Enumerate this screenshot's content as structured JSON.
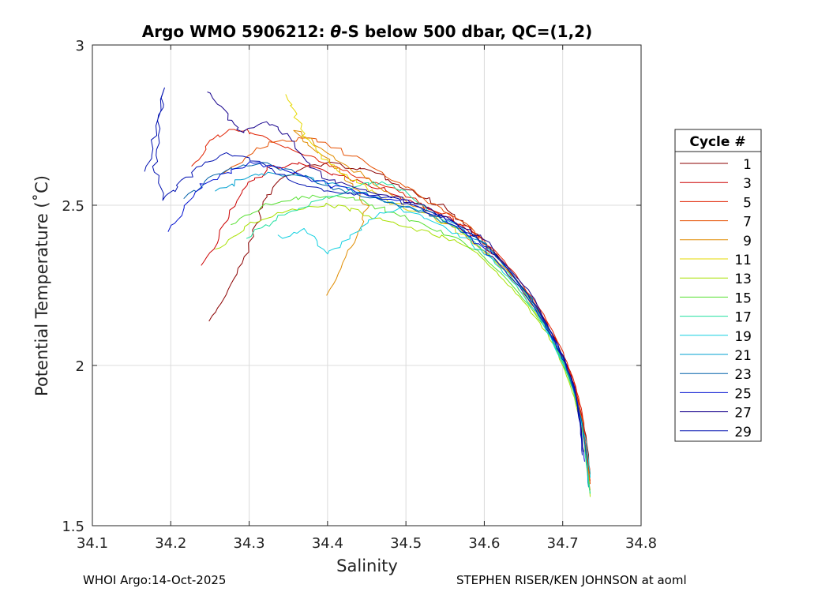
{
  "chart_data": {
    "type": "line",
    "title_prefix": "Argo WMO 5906212: ",
    "title_theta": "θ",
    "title_suffix": "-S below 500 dbar,  QC=(1,2)",
    "xlabel": "Salinity",
    "ylabel": "Potential Temperature (˚C)",
    "xlim": [
      34.1,
      34.8
    ],
    "ylim": [
      1.5,
      3.0
    ],
    "xticks": [
      "34.1",
      "34.2",
      "34.3",
      "34.4",
      "34.5",
      "34.6",
      "34.7",
      "34.8"
    ],
    "yticks": [
      "1.5",
      "2",
      "2.5",
      "3"
    ],
    "grid": true,
    "legend": {
      "title": "Cycle #",
      "placement": "right",
      "entries": [
        "1",
        "3",
        "5",
        "7",
        "9",
        "11",
        "13",
        "15",
        "17",
        "19",
        "21",
        "23",
        "25",
        "27",
        "29"
      ],
      "colors": [
        "#8b0000",
        "#cc0000",
        "#e02000",
        "#e65000",
        "#e08c00",
        "#e6d800",
        "#a8e000",
        "#55e030",
        "#20e0a0",
        "#10d0e0",
        "#00a0d0",
        "#0060a8",
        "#0010d0",
        "#15008c",
        "#0010b0"
      ]
    },
    "series": [
      {
        "name": "1",
        "points": [
          [
            34.25,
            2.14
          ],
          [
            34.27,
            2.22
          ],
          [
            34.29,
            2.32
          ],
          [
            34.31,
            2.44
          ],
          [
            34.32,
            2.52
          ],
          [
            34.34,
            2.58
          ],
          [
            34.37,
            2.62
          ],
          [
            34.4,
            2.63
          ],
          [
            34.43,
            2.62
          ],
          [
            34.46,
            2.6
          ],
          [
            34.49,
            2.57
          ],
          [
            34.52,
            2.53
          ],
          [
            34.55,
            2.49
          ],
          [
            34.58,
            2.43
          ],
          [
            34.61,
            2.36
          ],
          [
            34.64,
            2.27
          ],
          [
            34.67,
            2.17
          ],
          [
            34.69,
            2.08
          ],
          [
            34.71,
            1.98
          ],
          [
            34.72,
            1.88
          ],
          [
            34.73,
            1.78
          ],
          [
            34.735,
            1.66
          ]
        ]
      },
      {
        "name": "3",
        "points": [
          [
            34.24,
            2.31
          ],
          [
            34.26,
            2.4
          ],
          [
            34.28,
            2.5
          ],
          [
            34.3,
            2.57
          ],
          [
            34.33,
            2.62
          ],
          [
            34.36,
            2.63
          ],
          [
            34.39,
            2.61
          ],
          [
            34.43,
            2.58
          ],
          [
            34.47,
            2.55
          ],
          [
            34.51,
            2.51
          ],
          [
            34.55,
            2.47
          ],
          [
            34.59,
            2.4
          ],
          [
            34.62,
            2.33
          ],
          [
            34.65,
            2.24
          ],
          [
            34.68,
            2.13
          ],
          [
            34.7,
            2.03
          ],
          [
            34.715,
            1.94
          ],
          [
            34.725,
            1.84
          ],
          [
            34.73,
            1.74
          ],
          [
            34.735,
            1.64
          ]
        ]
      },
      {
        "name": "5",
        "points": [
          [
            34.23,
            2.62
          ],
          [
            34.25,
            2.7
          ],
          [
            34.28,
            2.74
          ],
          [
            34.31,
            2.72
          ],
          [
            34.35,
            2.68
          ],
          [
            34.39,
            2.64
          ],
          [
            34.43,
            2.6
          ],
          [
            34.47,
            2.56
          ],
          [
            34.51,
            2.52
          ],
          [
            34.55,
            2.47
          ],
          [
            34.59,
            2.41
          ],
          [
            34.62,
            2.34
          ],
          [
            34.65,
            2.25
          ],
          [
            34.68,
            2.14
          ],
          [
            34.7,
            2.04
          ],
          [
            34.715,
            1.95
          ],
          [
            34.725,
            1.85
          ],
          [
            34.73,
            1.76
          ],
          [
            34.735,
            1.66
          ]
        ]
      },
      {
        "name": "7",
        "points": [
          [
            34.27,
            2.6
          ],
          [
            34.3,
            2.66
          ],
          [
            34.33,
            2.7
          ],
          [
            34.37,
            2.71
          ],
          [
            34.41,
            2.68
          ],
          [
            34.45,
            2.63
          ],
          [
            34.49,
            2.57
          ],
          [
            34.53,
            2.51
          ],
          [
            34.57,
            2.45
          ],
          [
            34.6,
            2.38
          ],
          [
            34.63,
            2.3
          ],
          [
            34.66,
            2.21
          ],
          [
            34.68,
            2.12
          ],
          [
            34.7,
            2.02
          ],
          [
            34.715,
            1.93
          ],
          [
            34.725,
            1.83
          ],
          [
            34.73,
            1.73
          ],
          [
            34.735,
            1.63
          ]
        ]
      },
      {
        "name": "9",
        "points": [
          [
            34.4,
            2.22
          ],
          [
            34.42,
            2.32
          ],
          [
            34.44,
            2.42
          ],
          [
            34.45,
            2.5
          ],
          [
            34.43,
            2.57
          ],
          [
            34.41,
            2.62
          ],
          [
            34.38,
            2.68
          ],
          [
            34.36,
            2.73
          ],
          [
            34.38,
            2.7
          ],
          [
            34.42,
            2.63
          ],
          [
            34.46,
            2.57
          ],
          [
            34.5,
            2.51
          ],
          [
            34.54,
            2.46
          ],
          [
            34.58,
            2.4
          ],
          [
            34.62,
            2.32
          ],
          [
            34.65,
            2.23
          ],
          [
            34.68,
            2.12
          ],
          [
            34.7,
            2.02
          ],
          [
            34.715,
            1.92
          ],
          [
            34.725,
            1.82
          ],
          [
            34.73,
            1.72
          ],
          [
            34.735,
            1.61
          ]
        ]
      },
      {
        "name": "11",
        "points": [
          [
            34.35,
            2.84
          ],
          [
            34.36,
            2.78
          ],
          [
            34.37,
            2.72
          ],
          [
            34.39,
            2.66
          ],
          [
            34.42,
            2.6
          ],
          [
            34.45,
            2.55
          ],
          [
            34.48,
            2.51
          ],
          [
            34.52,
            2.48
          ],
          [
            34.56,
            2.43
          ],
          [
            34.59,
            2.38
          ],
          [
            34.62,
            2.31
          ],
          [
            34.65,
            2.22
          ],
          [
            34.68,
            2.11
          ],
          [
            34.7,
            2.01
          ],
          [
            34.715,
            1.92
          ],
          [
            34.725,
            1.81
          ],
          [
            34.73,
            1.71
          ],
          [
            34.735,
            1.6
          ]
        ]
      },
      {
        "name": "13",
        "points": [
          [
            34.26,
            2.36
          ],
          [
            34.29,
            2.42
          ],
          [
            34.32,
            2.46
          ],
          [
            34.36,
            2.49
          ],
          [
            34.4,
            2.5
          ],
          [
            34.44,
            2.48
          ],
          [
            34.48,
            2.45
          ],
          [
            34.52,
            2.42
          ],
          [
            34.56,
            2.39
          ],
          [
            34.59,
            2.35
          ],
          [
            34.62,
            2.28
          ],
          [
            34.65,
            2.2
          ],
          [
            34.68,
            2.1
          ],
          [
            34.7,
            2.0
          ],
          [
            34.715,
            1.9
          ],
          [
            34.725,
            1.8
          ],
          [
            34.73,
            1.7
          ],
          [
            34.735,
            1.59
          ]
        ]
      },
      {
        "name": "15",
        "points": [
          [
            34.28,
            2.44
          ],
          [
            34.31,
            2.49
          ],
          [
            34.35,
            2.52
          ],
          [
            34.39,
            2.53
          ],
          [
            34.43,
            2.52
          ],
          [
            34.47,
            2.49
          ],
          [
            34.51,
            2.45
          ],
          [
            34.55,
            2.41
          ],
          [
            34.59,
            2.36
          ],
          [
            34.62,
            2.29
          ],
          [
            34.65,
            2.21
          ],
          [
            34.68,
            2.11
          ],
          [
            34.7,
            2.01
          ],
          [
            34.715,
            1.91
          ],
          [
            34.725,
            1.81
          ],
          [
            34.73,
            1.71
          ],
          [
            34.735,
            1.6
          ]
        ]
      },
      {
        "name": "17",
        "points": [
          [
            34.3,
            2.4
          ],
          [
            34.33,
            2.45
          ],
          [
            34.36,
            2.49
          ],
          [
            34.4,
            2.52
          ],
          [
            34.44,
            2.56
          ],
          [
            34.47,
            2.57
          ],
          [
            34.5,
            2.54
          ],
          [
            34.53,
            2.48
          ],
          [
            34.57,
            2.42
          ],
          [
            34.6,
            2.36
          ],
          [
            34.63,
            2.29
          ],
          [
            34.66,
            2.2
          ],
          [
            34.68,
            2.11
          ],
          [
            34.7,
            2.01
          ],
          [
            34.715,
            1.91
          ],
          [
            34.725,
            1.81
          ],
          [
            34.73,
            1.7
          ],
          [
            34.735,
            1.6
          ]
        ]
      },
      {
        "name": "19",
        "points": [
          [
            34.34,
            2.4
          ],
          [
            34.37,
            2.42
          ],
          [
            34.4,
            2.35
          ],
          [
            34.43,
            2.4
          ],
          [
            34.46,
            2.46
          ],
          [
            34.49,
            2.49
          ],
          [
            34.52,
            2.47
          ],
          [
            34.55,
            2.43
          ],
          [
            34.58,
            2.39
          ],
          [
            34.61,
            2.33
          ],
          [
            34.64,
            2.25
          ],
          [
            34.67,
            2.15
          ],
          [
            34.69,
            2.06
          ],
          [
            34.71,
            1.96
          ],
          [
            34.72,
            1.86
          ],
          [
            34.73,
            1.76
          ],
          [
            34.735,
            1.65
          ]
        ]
      },
      {
        "name": "21",
        "points": [
          [
            34.26,
            2.54
          ],
          [
            34.29,
            2.58
          ],
          [
            34.32,
            2.6
          ],
          [
            34.36,
            2.59
          ],
          [
            34.4,
            2.57
          ],
          [
            34.44,
            2.54
          ],
          [
            34.48,
            2.51
          ],
          [
            34.52,
            2.48
          ],
          [
            34.56,
            2.44
          ],
          [
            34.6,
            2.38
          ],
          [
            34.63,
            2.3
          ],
          [
            34.66,
            2.21
          ],
          [
            34.68,
            2.12
          ],
          [
            34.7,
            2.02
          ],
          [
            34.715,
            1.92
          ],
          [
            34.725,
            1.82
          ],
          [
            34.73,
            1.72
          ],
          [
            34.733,
            1.62
          ]
        ]
      },
      {
        "name": "23",
        "points": [
          [
            34.22,
            2.52
          ],
          [
            34.25,
            2.58
          ],
          [
            34.28,
            2.62
          ],
          [
            34.32,
            2.63
          ],
          [
            34.36,
            2.6
          ],
          [
            34.4,
            2.56
          ],
          [
            34.44,
            2.53
          ],
          [
            34.48,
            2.51
          ],
          [
            34.52,
            2.48
          ],
          [
            34.56,
            2.44
          ],
          [
            34.6,
            2.38
          ],
          [
            34.63,
            2.3
          ],
          [
            34.66,
            2.21
          ],
          [
            34.68,
            2.12
          ],
          [
            34.7,
            2.02
          ],
          [
            34.715,
            1.92
          ],
          [
            34.725,
            1.82
          ],
          [
            34.73,
            1.72
          ]
        ]
      },
      {
        "name": "25",
        "points": [
          [
            34.2,
            2.42
          ],
          [
            34.22,
            2.5
          ],
          [
            34.24,
            2.56
          ],
          [
            34.27,
            2.6
          ],
          [
            34.3,
            2.63
          ],
          [
            34.34,
            2.62
          ],
          [
            34.38,
            2.58
          ],
          [
            34.42,
            2.55
          ],
          [
            34.46,
            2.53
          ],
          [
            34.5,
            2.51
          ],
          [
            34.54,
            2.47
          ],
          [
            34.58,
            2.41
          ],
          [
            34.61,
            2.34
          ],
          [
            34.64,
            2.26
          ],
          [
            34.67,
            2.16
          ],
          [
            34.69,
            2.07
          ],
          [
            34.71,
            1.97
          ],
          [
            34.72,
            1.87
          ],
          [
            34.725,
            1.77
          ],
          [
            34.728,
            1.7
          ]
        ]
      },
      {
        "name": "27",
        "points": [
          [
            34.25,
            2.86
          ],
          [
            34.27,
            2.78
          ],
          [
            34.29,
            2.72
          ],
          [
            34.32,
            2.76
          ],
          [
            34.35,
            2.72
          ],
          [
            34.37,
            2.64
          ],
          [
            34.4,
            2.58
          ],
          [
            34.44,
            2.55
          ],
          [
            34.48,
            2.53
          ],
          [
            34.52,
            2.5
          ],
          [
            34.56,
            2.45
          ],
          [
            34.6,
            2.39
          ],
          [
            34.63,
            2.31
          ],
          [
            34.66,
            2.22
          ],
          [
            34.68,
            2.13
          ],
          [
            34.7,
            2.03
          ],
          [
            34.715,
            1.93
          ],
          [
            34.722,
            1.83
          ],
          [
            34.726,
            1.73
          ]
        ]
      },
      {
        "name": "29",
        "points": [
          [
            34.17,
            2.6
          ],
          [
            34.18,
            2.72
          ],
          [
            34.19,
            2.86
          ],
          [
            34.185,
            2.74
          ],
          [
            34.18,
            2.62
          ],
          [
            34.19,
            2.52
          ],
          [
            34.21,
            2.56
          ],
          [
            34.24,
            2.63
          ],
          [
            34.27,
            2.66
          ],
          [
            34.31,
            2.64
          ],
          [
            34.35,
            2.58
          ],
          [
            34.39,
            2.55
          ],
          [
            34.43,
            2.54
          ],
          [
            34.47,
            2.53
          ],
          [
            34.51,
            2.5
          ],
          [
            34.55,
            2.46
          ],
          [
            34.59,
            2.4
          ],
          [
            34.62,
            2.33
          ],
          [
            34.65,
            2.24
          ],
          [
            34.68,
            2.13
          ],
          [
            34.7,
            2.03
          ],
          [
            34.715,
            1.93
          ],
          [
            34.722,
            1.82
          ],
          [
            34.725,
            1.72
          ]
        ]
      }
    ]
  },
  "footer": {
    "left": "WHOI Argo:14-Oct-2025",
    "right": "STEPHEN RISER/KEN JOHNSON at aoml"
  }
}
